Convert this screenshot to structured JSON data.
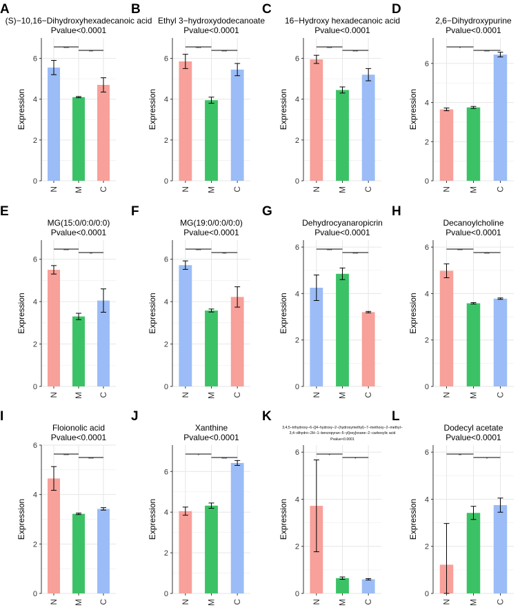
{
  "figure": {
    "colors": {
      "N": "#f8a09a",
      "M": "#3cc266",
      "C": "#9bbcf6",
      "red": "#f8a09a",
      "green": "#3cc266",
      "blue": "#9bbcf6"
    }
  },
  "chart_data": [
    {
      "type": "bar",
      "letter": "A",
      "title": [
        "(S)−10,16−Dihydroxyhexadecanoic acid",
        "Pvalue<0.0001"
      ],
      "categories": [
        "N",
        "M",
        "C"
      ],
      "values": [
        5.55,
        4.1,
        4.7
      ],
      "errors": [
        0.35,
        0.03,
        0.35
      ],
      "colors": [
        "blue",
        "green",
        "red"
      ],
      "ylabel": "Expression",
      "yticks": [
        0,
        2,
        4,
        6
      ],
      "ylim": [
        0,
        7.0
      ],
      "brackets": [
        {
          "from": 0,
          "to": 1,
          "label": "****"
        },
        {
          "from": 1,
          "to": 2,
          "label": "***"
        }
      ]
    },
    {
      "type": "bar",
      "letter": "B",
      "title": [
        "Ethyl 3−hydroxydodecanoate",
        "Pvalue<0.0001"
      ],
      "categories": [
        "N",
        "M",
        "C"
      ],
      "values": [
        5.85,
        3.95,
        5.45
      ],
      "errors": [
        0.35,
        0.15,
        0.3
      ],
      "colors": [
        "red",
        "green",
        "blue"
      ],
      "ylabel": "Expression",
      "yticks": [
        0,
        2,
        4,
        6
      ],
      "ylim": [
        0,
        7.0
      ],
      "brackets": [
        {
          "from": 0,
          "to": 1,
          "label": "****"
        },
        {
          "from": 1,
          "to": 2,
          "label": "****"
        }
      ]
    },
    {
      "type": "bar",
      "letter": "C",
      "title": [
        "16−Hydroxy hexadecanoic acid",
        "Pvalue<0.0001"
      ],
      "categories": [
        "N",
        "M",
        "C"
      ],
      "values": [
        5.95,
        4.45,
        5.2
      ],
      "errors": [
        0.2,
        0.15,
        0.3
      ],
      "colors": [
        "red",
        "green",
        "blue"
      ],
      "ylabel": "Expression",
      "yticks": [
        0,
        2,
        4,
        6
      ],
      "ylim": [
        0,
        7.0
      ],
      "brackets": [
        {
          "from": 0,
          "to": 1,
          "label": "****"
        },
        {
          "from": 1,
          "to": 2,
          "label": "****"
        }
      ]
    },
    {
      "type": "bar",
      "letter": "D",
      "title": [
        "2,6−Dihydroxypurine",
        "Pvalue<0.0001"
      ],
      "categories": [
        "N",
        "M",
        "C"
      ],
      "values": [
        3.65,
        3.75,
        6.45
      ],
      "errors": [
        0.07,
        0.05,
        0.12
      ],
      "colors": [
        "red",
        "green",
        "blue"
      ],
      "ylabel": "Expression",
      "yticks": [
        0,
        2,
        4,
        6
      ],
      "ylim": [
        0,
        7.3
      ],
      "brackets": [
        {
          "from": 0,
          "to": 1,
          "label": "*"
        },
        {
          "from": 1,
          "to": 2,
          "label": "****"
        }
      ]
    },
    {
      "type": "bar",
      "letter": "E",
      "title": [
        "MG(15:0/0:0/0:0)",
        "Pvalue<0.0001"
      ],
      "categories": [
        "N",
        "M",
        "C"
      ],
      "values": [
        5.5,
        3.3,
        4.05
      ],
      "errors": [
        0.2,
        0.15,
        0.55
      ],
      "colors": [
        "red",
        "green",
        "blue"
      ],
      "ylabel": "Expression",
      "yticks": [
        0,
        2,
        4,
        6
      ],
      "ylim": [
        0,
        6.9
      ],
      "brackets": [
        {
          "from": 0,
          "to": 1,
          "label": "****"
        },
        {
          "from": 1,
          "to": 2,
          "label": "**"
        }
      ]
    },
    {
      "type": "bar",
      "letter": "F",
      "title": [
        "MG(19:0/0:0/0:0)",
        "Pvalue<0.0001"
      ],
      "categories": [
        "N",
        "M",
        "C"
      ],
      "values": [
        5.72,
        3.58,
        4.22
      ],
      "errors": [
        0.2,
        0.07,
        0.48
      ],
      "colors": [
        "blue",
        "green",
        "red"
      ],
      "ylabel": "Expression",
      "yticks": [
        0,
        2,
        4,
        6
      ],
      "ylim": [
        0,
        6.9
      ],
      "brackets": [
        {
          "from": 0,
          "to": 1,
          "label": "****"
        },
        {
          "from": 1,
          "to": 2,
          "label": "***"
        }
      ]
    },
    {
      "type": "bar",
      "letter": "G",
      "title": [
        "Dehydrocyanaropicrin",
        "Pvalue<0.0001"
      ],
      "categories": [
        "N",
        "M",
        "C"
      ],
      "values": [
        4.25,
        4.85,
        3.2
      ],
      "errors": [
        0.55,
        0.25,
        0.03
      ],
      "colors": [
        "blue",
        "green",
        "red"
      ],
      "ylabel": "Expression",
      "yticks": [
        0,
        2,
        4,
        6
      ],
      "ylim": [
        0,
        6.3
      ],
      "brackets": [
        {
          "from": 0,
          "to": 1,
          "label": "****"
        },
        {
          "from": 1,
          "to": 2,
          "label": "****"
        }
      ]
    },
    {
      "type": "bar",
      "letter": "H",
      "title": [
        "Decanoylcholine",
        "Pvalue<0.0001"
      ],
      "categories": [
        "N",
        "M",
        "C"
      ],
      "values": [
        4.98,
        3.58,
        3.78
      ],
      "errors": [
        0.3,
        0.03,
        0.03
      ],
      "colors": [
        "red",
        "green",
        "blue"
      ],
      "ylabel": "Expression",
      "yticks": [
        0,
        2,
        4,
        6
      ],
      "ylim": [
        0,
        6.3
      ],
      "brackets": [
        {
          "from": 0,
          "to": 1,
          "label": "****"
        },
        {
          "from": 1,
          "to": 2,
          "label": "****"
        }
      ]
    },
    {
      "type": "bar",
      "letter": "I",
      "title": [
        "Floionolic acid",
        "Pvalue<0.0001"
      ],
      "categories": [
        "N",
        "M",
        "C"
      ],
      "values": [
        4.65,
        3.22,
        3.42
      ],
      "errors": [
        0.48,
        0.03,
        0.05
      ],
      "colors": [
        "red",
        "green",
        "blue"
      ],
      "ylabel": "Expression",
      "yticks": [
        0,
        2,
        4,
        6
      ],
      "ylim": [
        0,
        6.0
      ],
      "brackets": [
        {
          "from": 0,
          "to": 1,
          "label": "****"
        },
        {
          "from": 1,
          "to": 2,
          "label": "****"
        }
      ]
    },
    {
      "type": "bar",
      "letter": "J",
      "title": [
        "Xanthine",
        "Pvalue<0.0001"
      ],
      "categories": [
        "N",
        "M",
        "C"
      ],
      "values": [
        4.05,
        4.32,
        6.42
      ],
      "errors": [
        0.2,
        0.13,
        0.12
      ],
      "colors": [
        "red",
        "green",
        "blue"
      ],
      "ylabel": "Expression",
      "yticks": [
        0,
        2,
        4,
        6
      ],
      "ylim": [
        0,
        7.3
      ],
      "brackets": [
        {
          "from": 0,
          "to": 1,
          "label": "*"
        },
        {
          "from": 1,
          "to": 2,
          "label": "****"
        }
      ]
    },
    {
      "type": "bar",
      "letter": "K",
      "title": [
        "3,4,5−trihydroxy−6−[[4−hydroxy−2−(hydroxymethyl)−7−methoxy−2−methyl−",
        "3,4−dihydro−2H−1−benzopyran−5−yl]oxy]oxane−2−carboxylic acid",
        "Pvalue<0.0001"
      ],
      "categories": [
        "N",
        "M",
        "C"
      ],
      "values": [
        3.72,
        0.65,
        0.6
      ],
      "errors": [
        1.95,
        0.05,
        0.03
      ],
      "colors": [
        "red",
        "green",
        "blue"
      ],
      "ylabel": "Expression",
      "yticks": [
        0,
        2,
        4,
        6
      ],
      "ylim": [
        0,
        6.3
      ],
      "brackets": [
        {
          "from": 0,
          "to": 1,
          "label": "*"
        },
        {
          "from": 1,
          "to": 2,
          "label": "*"
        }
      ]
    },
    {
      "type": "bar",
      "letter": "L",
      "title": [
        "Dodecyl acetate",
        "Pvalue<0.0001"
      ],
      "categories": [
        "N",
        "M",
        "C"
      ],
      "values": [
        1.22,
        3.42,
        3.75
      ],
      "errors": [
        1.75,
        0.28,
        0.3
      ],
      "colors": [
        "red",
        "green",
        "blue"
      ],
      "ylabel": "Expression",
      "yticks": [
        0,
        2,
        4,
        6
      ],
      "ylim": [
        0,
        6.3
      ],
      "brackets": [
        {
          "from": 0,
          "to": 1,
          "label": "**"
        },
        {
          "from": 1,
          "to": 2,
          "label": "*"
        }
      ]
    }
  ]
}
